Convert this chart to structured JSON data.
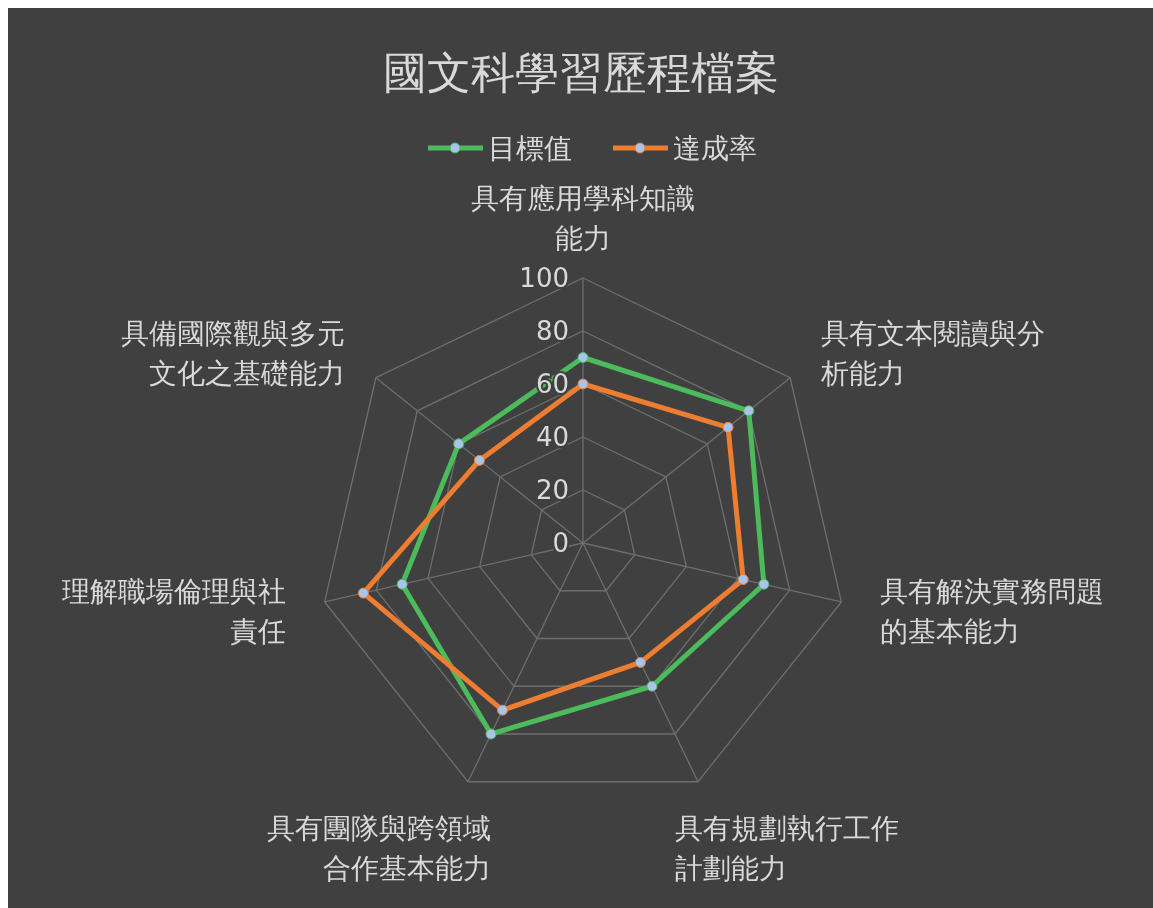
{
  "chart_data": {
    "type": "radar",
    "title": "國文科學習歷程檔案",
    "categories": [
      "具有應用學科知識能力",
      "具有文本閱讀與分析能力",
      "具有解決實務問題的基本能力",
      "具有規劃執行工作計劃能力",
      "具有團隊與跨領域合作基本能力",
      "理解職場倫理與社責任",
      "具備國際觀與多元文化之基礎能力"
    ],
    "series": [
      {
        "name": "目標值",
        "color": "#4cbb5c",
        "values": [
          70,
          80,
          70,
          60,
          80,
          70,
          60
        ]
      },
      {
        "name": "達成率",
        "color": "#ed7d31",
        "values": [
          60,
          70,
          62,
          50,
          70,
          85,
          50
        ]
      }
    ],
    "ylim": [
      0,
      100
    ],
    "yticks": [
      0,
      20,
      40,
      60,
      80,
      100
    ],
    "legend": "top",
    "marker": "circle",
    "grid": true
  }
}
